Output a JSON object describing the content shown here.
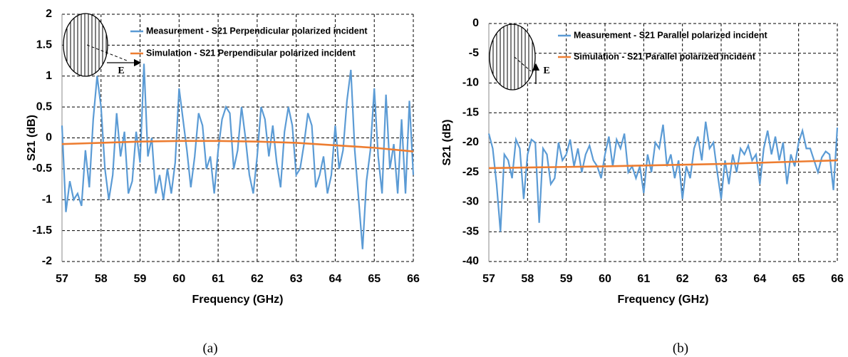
{
  "chart_data": [
    {
      "type": "line",
      "caption": "(a)",
      "annotation": "E",
      "xlabel": "Frequency (GHz)",
      "ylabel": "S21 (dB)",
      "xlim": [
        57,
        66
      ],
      "ylim": [
        -2,
        2
      ],
      "xticks": [
        57,
        58,
        59,
        60,
        61,
        62,
        63,
        64,
        65,
        66
      ],
      "yticks": [
        2,
        1.5,
        1,
        0.5,
        0,
        -0.5,
        -1,
        -1.5,
        -2
      ],
      "grid": true,
      "series": [
        {
          "name": "Measurement - S21 Perpendicular polarized incident",
          "color": "#5b9bd5",
          "x": [
            57,
            57.1,
            57.2,
            57.3,
            57.4,
            57.5,
            57.6,
            57.7,
            57.8,
            57.9,
            58,
            58.1,
            58.2,
            58.3,
            58.4,
            58.5,
            58.6,
            58.7,
            58.8,
            58.9,
            59,
            59.1,
            59.2,
            59.3,
            59.4,
            59.5,
            59.6,
            59.7,
            59.8,
            59.9,
            60,
            60.1,
            60.2,
            60.3,
            60.4,
            60.5,
            60.6,
            60.7,
            60.8,
            60.9,
            61,
            61.1,
            61.2,
            61.3,
            61.4,
            61.5,
            61.6,
            61.7,
            61.8,
            61.9,
            62,
            62.1,
            62.2,
            62.3,
            62.4,
            62.5,
            62.6,
            62.7,
            62.8,
            62.9,
            63,
            63.1,
            63.2,
            63.3,
            63.4,
            63.5,
            63.6,
            63.7,
            63.8,
            63.9,
            64,
            64.1,
            64.2,
            64.3,
            64.4,
            64.5,
            64.6,
            64.7,
            64.8,
            64.9,
            65,
            65.1,
            65.2,
            65.3,
            65.4,
            65.5,
            65.6,
            65.7,
            65.8,
            65.9,
            66
          ],
          "values": [
            0.2,
            -1.2,
            -0.7,
            -1.0,
            -0.9,
            -1.1,
            -0.2,
            -0.8,
            0.3,
            1.0,
            0.5,
            -0.5,
            -1.0,
            -0.6,
            0.4,
            -0.3,
            0.1,
            -0.9,
            -0.7,
            0.1,
            -0.4,
            1.2,
            -0.3,
            0.0,
            -0.9,
            -0.6,
            -1.0,
            -0.5,
            -0.9,
            -0.4,
            0.8,
            0.3,
            -0.2,
            -0.8,
            -0.3,
            0.4,
            0.2,
            -0.5,
            -0.3,
            -0.9,
            -0.2,
            0.3,
            0.5,
            0.4,
            -0.5,
            -0.2,
            0.5,
            0.0,
            -0.6,
            -0.9,
            -0.3,
            0.5,
            0.3,
            -0.3,
            0.2,
            -0.4,
            -0.8,
            0.1,
            0.5,
            0.2,
            -0.6,
            -0.5,
            -0.1,
            0.4,
            0.2,
            -0.8,
            -0.6,
            -0.3,
            -0.9,
            -0.6,
            0.2,
            -0.5,
            -0.2,
            0.6,
            1.1,
            -0.2,
            -1.0,
            -1.8,
            -0.7,
            -0.2,
            0.8,
            -0.3,
            -0.9,
            0.7,
            -0.5,
            -0.1,
            -0.9,
            0.3,
            -0.9,
            0.6,
            -0.6
          ]
        },
        {
          "name": "Simulation - S21 Perpendicular polarized incident",
          "color": "#ed7d31",
          "x": [
            57,
            58,
            59,
            60,
            61,
            62,
            63,
            64,
            65,
            66
          ],
          "values": [
            -0.1,
            -0.08,
            -0.06,
            -0.05,
            -0.05,
            -0.06,
            -0.08,
            -0.12,
            -0.16,
            -0.22
          ]
        }
      ]
    },
    {
      "type": "line",
      "caption": "(b)",
      "annotation": "E",
      "xlabel": "Frequency (GHz)",
      "ylabel": "S21 (dB)",
      "xlim": [
        57,
        66
      ],
      "ylim": [
        -40,
        0
      ],
      "xticks": [
        57,
        58,
        59,
        60,
        61,
        62,
        63,
        64,
        65,
        66
      ],
      "yticks": [
        0,
        -5,
        -10,
        -15,
        -20,
        -25,
        -30,
        -35,
        -40
      ],
      "grid": true,
      "series": [
        {
          "name": "Measurement - S21 Parallel polarized incident",
          "color": "#5b9bd5",
          "x": [
            57,
            57.1,
            57.2,
            57.3,
            57.4,
            57.5,
            57.6,
            57.7,
            57.8,
            57.9,
            58,
            58.1,
            58.2,
            58.3,
            58.4,
            58.5,
            58.6,
            58.7,
            58.8,
            58.9,
            59,
            59.1,
            59.2,
            59.3,
            59.4,
            59.5,
            59.6,
            59.7,
            59.8,
            59.9,
            60,
            60.1,
            60.2,
            60.3,
            60.4,
            60.5,
            60.6,
            60.7,
            60.8,
            60.9,
            61,
            61.1,
            61.2,
            61.3,
            61.4,
            61.5,
            61.6,
            61.7,
            61.8,
            61.9,
            62,
            62.1,
            62.2,
            62.3,
            62.4,
            62.5,
            62.6,
            62.7,
            62.8,
            62.9,
            63,
            63.1,
            63.2,
            63.3,
            63.4,
            63.5,
            63.6,
            63.7,
            63.8,
            63.9,
            64,
            64.1,
            64.2,
            64.3,
            64.4,
            64.5,
            64.6,
            64.7,
            64.8,
            64.9,
            65,
            65.1,
            65.2,
            65.3,
            65.4,
            65.5,
            65.6,
            65.7,
            65.8,
            65.9,
            66
          ],
          "values": [
            -18.5,
            -21,
            -27,
            -35,
            -22,
            -23,
            -26,
            -19.5,
            -21,
            -29.5,
            -22,
            -19.5,
            -20,
            -33.5,
            -21,
            -22,
            -27,
            -26,
            -20,
            -23,
            -22,
            -19.5,
            -24,
            -21,
            -25,
            -22,
            -20.5,
            -23,
            -24,
            -26,
            -22,
            -19,
            -24,
            -19.5,
            -21,
            -18.5,
            -25,
            -24,
            -26,
            -24,
            -28.5,
            -22,
            -25,
            -20,
            -21,
            -17,
            -24,
            -22,
            -26,
            -23,
            -29.5,
            -24,
            -26,
            -21,
            -19,
            -23,
            -16.5,
            -21,
            -20,
            -25,
            -29.5,
            -23,
            -27,
            -22,
            -25,
            -21,
            -22,
            -20.5,
            -23,
            -22,
            -27,
            -21,
            -18,
            -22,
            -19,
            -23,
            -20,
            -27,
            -22,
            -24,
            -20,
            -18,
            -21,
            -21,
            -23,
            -25,
            -22.5,
            -21.5,
            -22,
            -28,
            -17.5
          ]
        },
        {
          "name": "Simulation - S21 Parallel polarized incident",
          "color": "#ed7d31",
          "x": [
            57,
            60,
            63,
            66
          ],
          "values": [
            -24.3,
            -24.0,
            -23.6,
            -23.0
          ]
        }
      ]
    }
  ]
}
